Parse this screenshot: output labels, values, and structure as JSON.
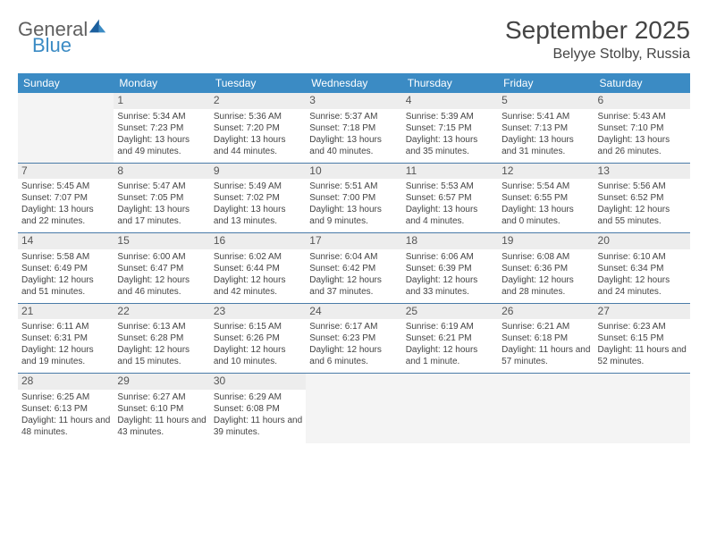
{
  "logo": {
    "general": "General",
    "blue": "Blue"
  },
  "title": "September 2025",
  "location": "Belyye Stolby, Russia",
  "colors": {
    "header_bg": "#3b8bc4",
    "header_text": "#ffffff",
    "daynum_bg": "#ededed",
    "border": "#4a7ba8",
    "text": "#444444",
    "empty_bg": "#f4f4f4"
  },
  "weekdays": [
    "Sunday",
    "Monday",
    "Tuesday",
    "Wednesday",
    "Thursday",
    "Friday",
    "Saturday"
  ],
  "grid": [
    [
      null,
      {
        "n": "1",
        "sr": "5:34 AM",
        "ss": "7:23 PM",
        "dl": "13 hours and 49 minutes."
      },
      {
        "n": "2",
        "sr": "5:36 AM",
        "ss": "7:20 PM",
        "dl": "13 hours and 44 minutes."
      },
      {
        "n": "3",
        "sr": "5:37 AM",
        "ss": "7:18 PM",
        "dl": "13 hours and 40 minutes."
      },
      {
        "n": "4",
        "sr": "5:39 AM",
        "ss": "7:15 PM",
        "dl": "13 hours and 35 minutes."
      },
      {
        "n": "5",
        "sr": "5:41 AM",
        "ss": "7:13 PM",
        "dl": "13 hours and 31 minutes."
      },
      {
        "n": "6",
        "sr": "5:43 AM",
        "ss": "7:10 PM",
        "dl": "13 hours and 26 minutes."
      }
    ],
    [
      {
        "n": "7",
        "sr": "5:45 AM",
        "ss": "7:07 PM",
        "dl": "13 hours and 22 minutes."
      },
      {
        "n": "8",
        "sr": "5:47 AM",
        "ss": "7:05 PM",
        "dl": "13 hours and 17 minutes."
      },
      {
        "n": "9",
        "sr": "5:49 AM",
        "ss": "7:02 PM",
        "dl": "13 hours and 13 minutes."
      },
      {
        "n": "10",
        "sr": "5:51 AM",
        "ss": "7:00 PM",
        "dl": "13 hours and 9 minutes."
      },
      {
        "n": "11",
        "sr": "5:53 AM",
        "ss": "6:57 PM",
        "dl": "13 hours and 4 minutes."
      },
      {
        "n": "12",
        "sr": "5:54 AM",
        "ss": "6:55 PM",
        "dl": "13 hours and 0 minutes."
      },
      {
        "n": "13",
        "sr": "5:56 AM",
        "ss": "6:52 PM",
        "dl": "12 hours and 55 minutes."
      }
    ],
    [
      {
        "n": "14",
        "sr": "5:58 AM",
        "ss": "6:49 PM",
        "dl": "12 hours and 51 minutes."
      },
      {
        "n": "15",
        "sr": "6:00 AM",
        "ss": "6:47 PM",
        "dl": "12 hours and 46 minutes."
      },
      {
        "n": "16",
        "sr": "6:02 AM",
        "ss": "6:44 PM",
        "dl": "12 hours and 42 minutes."
      },
      {
        "n": "17",
        "sr": "6:04 AM",
        "ss": "6:42 PM",
        "dl": "12 hours and 37 minutes."
      },
      {
        "n": "18",
        "sr": "6:06 AM",
        "ss": "6:39 PM",
        "dl": "12 hours and 33 minutes."
      },
      {
        "n": "19",
        "sr": "6:08 AM",
        "ss": "6:36 PM",
        "dl": "12 hours and 28 minutes."
      },
      {
        "n": "20",
        "sr": "6:10 AM",
        "ss": "6:34 PM",
        "dl": "12 hours and 24 minutes."
      }
    ],
    [
      {
        "n": "21",
        "sr": "6:11 AM",
        "ss": "6:31 PM",
        "dl": "12 hours and 19 minutes."
      },
      {
        "n": "22",
        "sr": "6:13 AM",
        "ss": "6:28 PM",
        "dl": "12 hours and 15 minutes."
      },
      {
        "n": "23",
        "sr": "6:15 AM",
        "ss": "6:26 PM",
        "dl": "12 hours and 10 minutes."
      },
      {
        "n": "24",
        "sr": "6:17 AM",
        "ss": "6:23 PM",
        "dl": "12 hours and 6 minutes."
      },
      {
        "n": "25",
        "sr": "6:19 AM",
        "ss": "6:21 PM",
        "dl": "12 hours and 1 minute."
      },
      {
        "n": "26",
        "sr": "6:21 AM",
        "ss": "6:18 PM",
        "dl": "11 hours and 57 minutes."
      },
      {
        "n": "27",
        "sr": "6:23 AM",
        "ss": "6:15 PM",
        "dl": "11 hours and 52 minutes."
      }
    ],
    [
      {
        "n": "28",
        "sr": "6:25 AM",
        "ss": "6:13 PM",
        "dl": "11 hours and 48 minutes."
      },
      {
        "n": "29",
        "sr": "6:27 AM",
        "ss": "6:10 PM",
        "dl": "11 hours and 43 minutes."
      },
      {
        "n": "30",
        "sr": "6:29 AM",
        "ss": "6:08 PM",
        "dl": "11 hours and 39 minutes."
      },
      null,
      null,
      null,
      null
    ]
  ],
  "labels": {
    "sunrise": "Sunrise:",
    "sunset": "Sunset:",
    "daylight": "Daylight:"
  }
}
